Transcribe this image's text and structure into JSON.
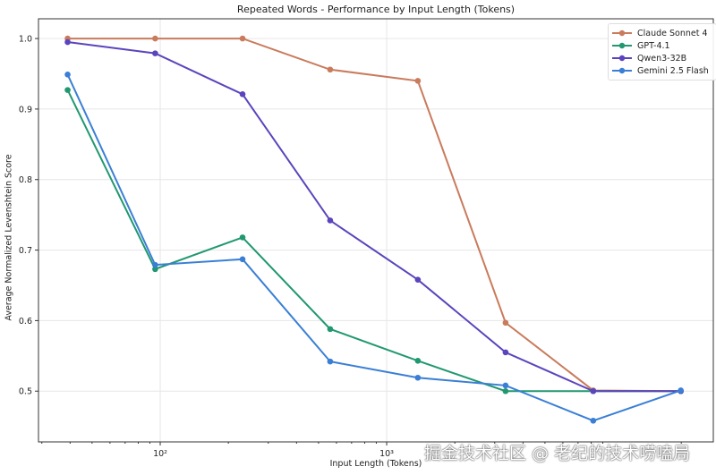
{
  "chart_data": {
    "type": "line",
    "title": "Repeated Words - Performance by Input Length (Tokens)",
    "xlabel": "Input Length (Tokens)",
    "ylabel": "Average Normalized Levenshtein Score",
    "x_scale": "log",
    "x": [
      39,
      95,
      231,
      563,
      1373,
      3350,
      8170,
      19900
    ],
    "xlim": [
      29,
      27700
    ],
    "ylim": [
      0.428,
      1.028
    ],
    "x_ticks": [
      {
        "value": 100,
        "label": "10²"
      },
      {
        "value": 1000,
        "label": "10³"
      }
    ],
    "y_ticks": [
      {
        "value": 0.5,
        "label": "0.5"
      },
      {
        "value": 0.6,
        "label": "0.6"
      },
      {
        "value": 0.7,
        "label": "0.7"
      },
      {
        "value": 0.8,
        "label": "0.8"
      },
      {
        "value": 0.9,
        "label": "0.9"
      },
      {
        "value": 1.0,
        "label": "1.0"
      }
    ],
    "grid": true,
    "legend_position": "top-right",
    "series": [
      {
        "name": "Claude Sonnet 4",
        "color": "#c97b5c",
        "values": [
          1.0,
          1.0,
          1.0,
          0.956,
          0.94,
          0.597,
          0.501,
          0.5
        ]
      },
      {
        "name": "GPT-4.1",
        "color": "#21986f",
        "values": [
          0.927,
          0.673,
          0.718,
          0.588,
          0.543,
          0.5,
          0.5,
          0.5
        ]
      },
      {
        "name": "Qwen3-32B",
        "color": "#5b44bd",
        "values": [
          0.995,
          0.979,
          0.921,
          0.742,
          0.658,
          0.555,
          0.5,
          0.5
        ]
      },
      {
        "name": "Gemini 2.5 Flash",
        "color": "#3a7fd5",
        "values": [
          0.949,
          0.679,
          0.687,
          0.542,
          0.519,
          0.508,
          0.458,
          0.501
        ]
      }
    ]
  },
  "watermark": "掘金技术社区 @ 老纪的技术唠嗑局"
}
